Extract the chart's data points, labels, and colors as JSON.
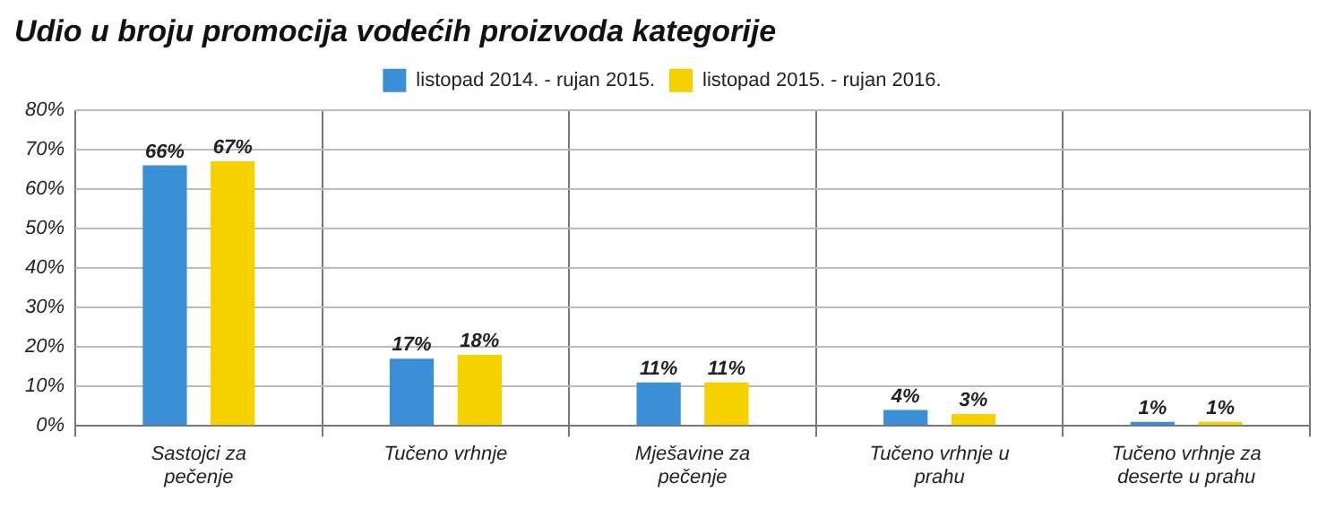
{
  "chart_data": {
    "type": "bar",
    "title": "Udio u broju promocija vodećih proizvoda kategorije",
    "categories": [
      "Sastojci za pečenje",
      "Tučeno vrhnje",
      "Mješavine za pečenje",
      "Tučeno vrhnje u prahu",
      "Tučeno vrhnje za deserte u prahu"
    ],
    "series": [
      {
        "name": "listopad 2014. - rujan 2015.",
        "color": "#3a8fd6",
        "values": [
          66,
          17,
          11,
          4,
          1
        ],
        "value_labels": [
          "66%",
          "17%",
          "11%",
          "4%",
          "1%"
        ]
      },
      {
        "name": "listopad 2015. - rujan 2016.",
        "color": "#f7d000",
        "values": [
          67,
          18,
          11,
          3,
          1
        ],
        "value_labels": [
          "67%",
          "18%",
          "11%",
          "3%",
          "1%"
        ]
      }
    ],
    "ylim": [
      0,
      80
    ],
    "yticks": [
      {
        "value": 0,
        "label": "0%"
      },
      {
        "value": 10,
        "label": "10%"
      },
      {
        "value": 20,
        "label": "20%"
      },
      {
        "value": 30,
        "label": "30%"
      },
      {
        "value": 40,
        "label": "40%"
      },
      {
        "value": 50,
        "label": "50%"
      },
      {
        "value": 60,
        "label": "60%"
      },
      {
        "value": 70,
        "label": "70%"
      },
      {
        "value": 80,
        "label": "80%"
      }
    ],
    "grid": true,
    "legend": "top"
  }
}
